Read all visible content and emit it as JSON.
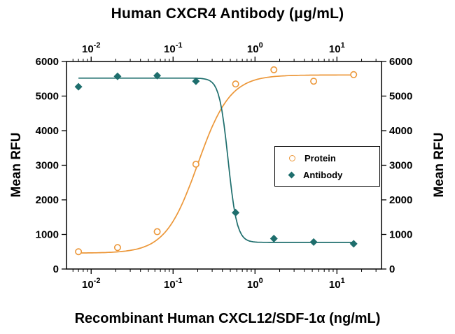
{
  "chart_data": {
    "type": "line-scatter",
    "title": "Human CXCR4 Antibody (μg/mL)",
    "xlabel_bottom": "Recombinant Human CXCL12/SDF-1α (ng/mL)",
    "ylabel_left": "Mean RFU",
    "ylabel_right": "Mean RFU",
    "x_scale": "log",
    "x_range": [
      0.005,
      35
    ],
    "y_range": [
      0,
      6000
    ],
    "y_ticks": [
      0,
      1000,
      2000,
      3000,
      4000,
      5000,
      6000
    ],
    "x_tick_exponents": [
      -2,
      -1,
      0,
      1
    ],
    "grid": false,
    "legend": {
      "position": "right-center",
      "items": [
        "Protein",
        "Antibody"
      ]
    },
    "series": [
      {
        "name": "Protein",
        "marker": "open-circle",
        "color": "#EC9739",
        "x": [
          0.007,
          0.021,
          0.064,
          0.19,
          0.58,
          1.7,
          5.2,
          16
        ],
        "y": [
          500,
          620,
          1080,
          3030,
          5350,
          5760,
          5430,
          5620
        ],
        "curve": {
          "direction": "increasing",
          "bottom": 460,
          "top": 5610,
          "c50": 0.2,
          "hill": 2.2,
          "x_start": 0.007,
          "x_end": 16
        }
      },
      {
        "name": "Antibody",
        "marker": "filled-diamond",
        "color": "#1E6E6D",
        "x": [
          0.007,
          0.021,
          0.064,
          0.19,
          0.58,
          1.7,
          5.2,
          16
        ],
        "y": [
          5270,
          5570,
          5590,
          5430,
          1630,
          880,
          780,
          730
        ],
        "curve": {
          "direction": "decreasing",
          "top": 5520,
          "bottom": 770,
          "c50": 0.47,
          "hill": 8,
          "x_start": 0.007,
          "x_end": 16
        }
      }
    ]
  }
}
